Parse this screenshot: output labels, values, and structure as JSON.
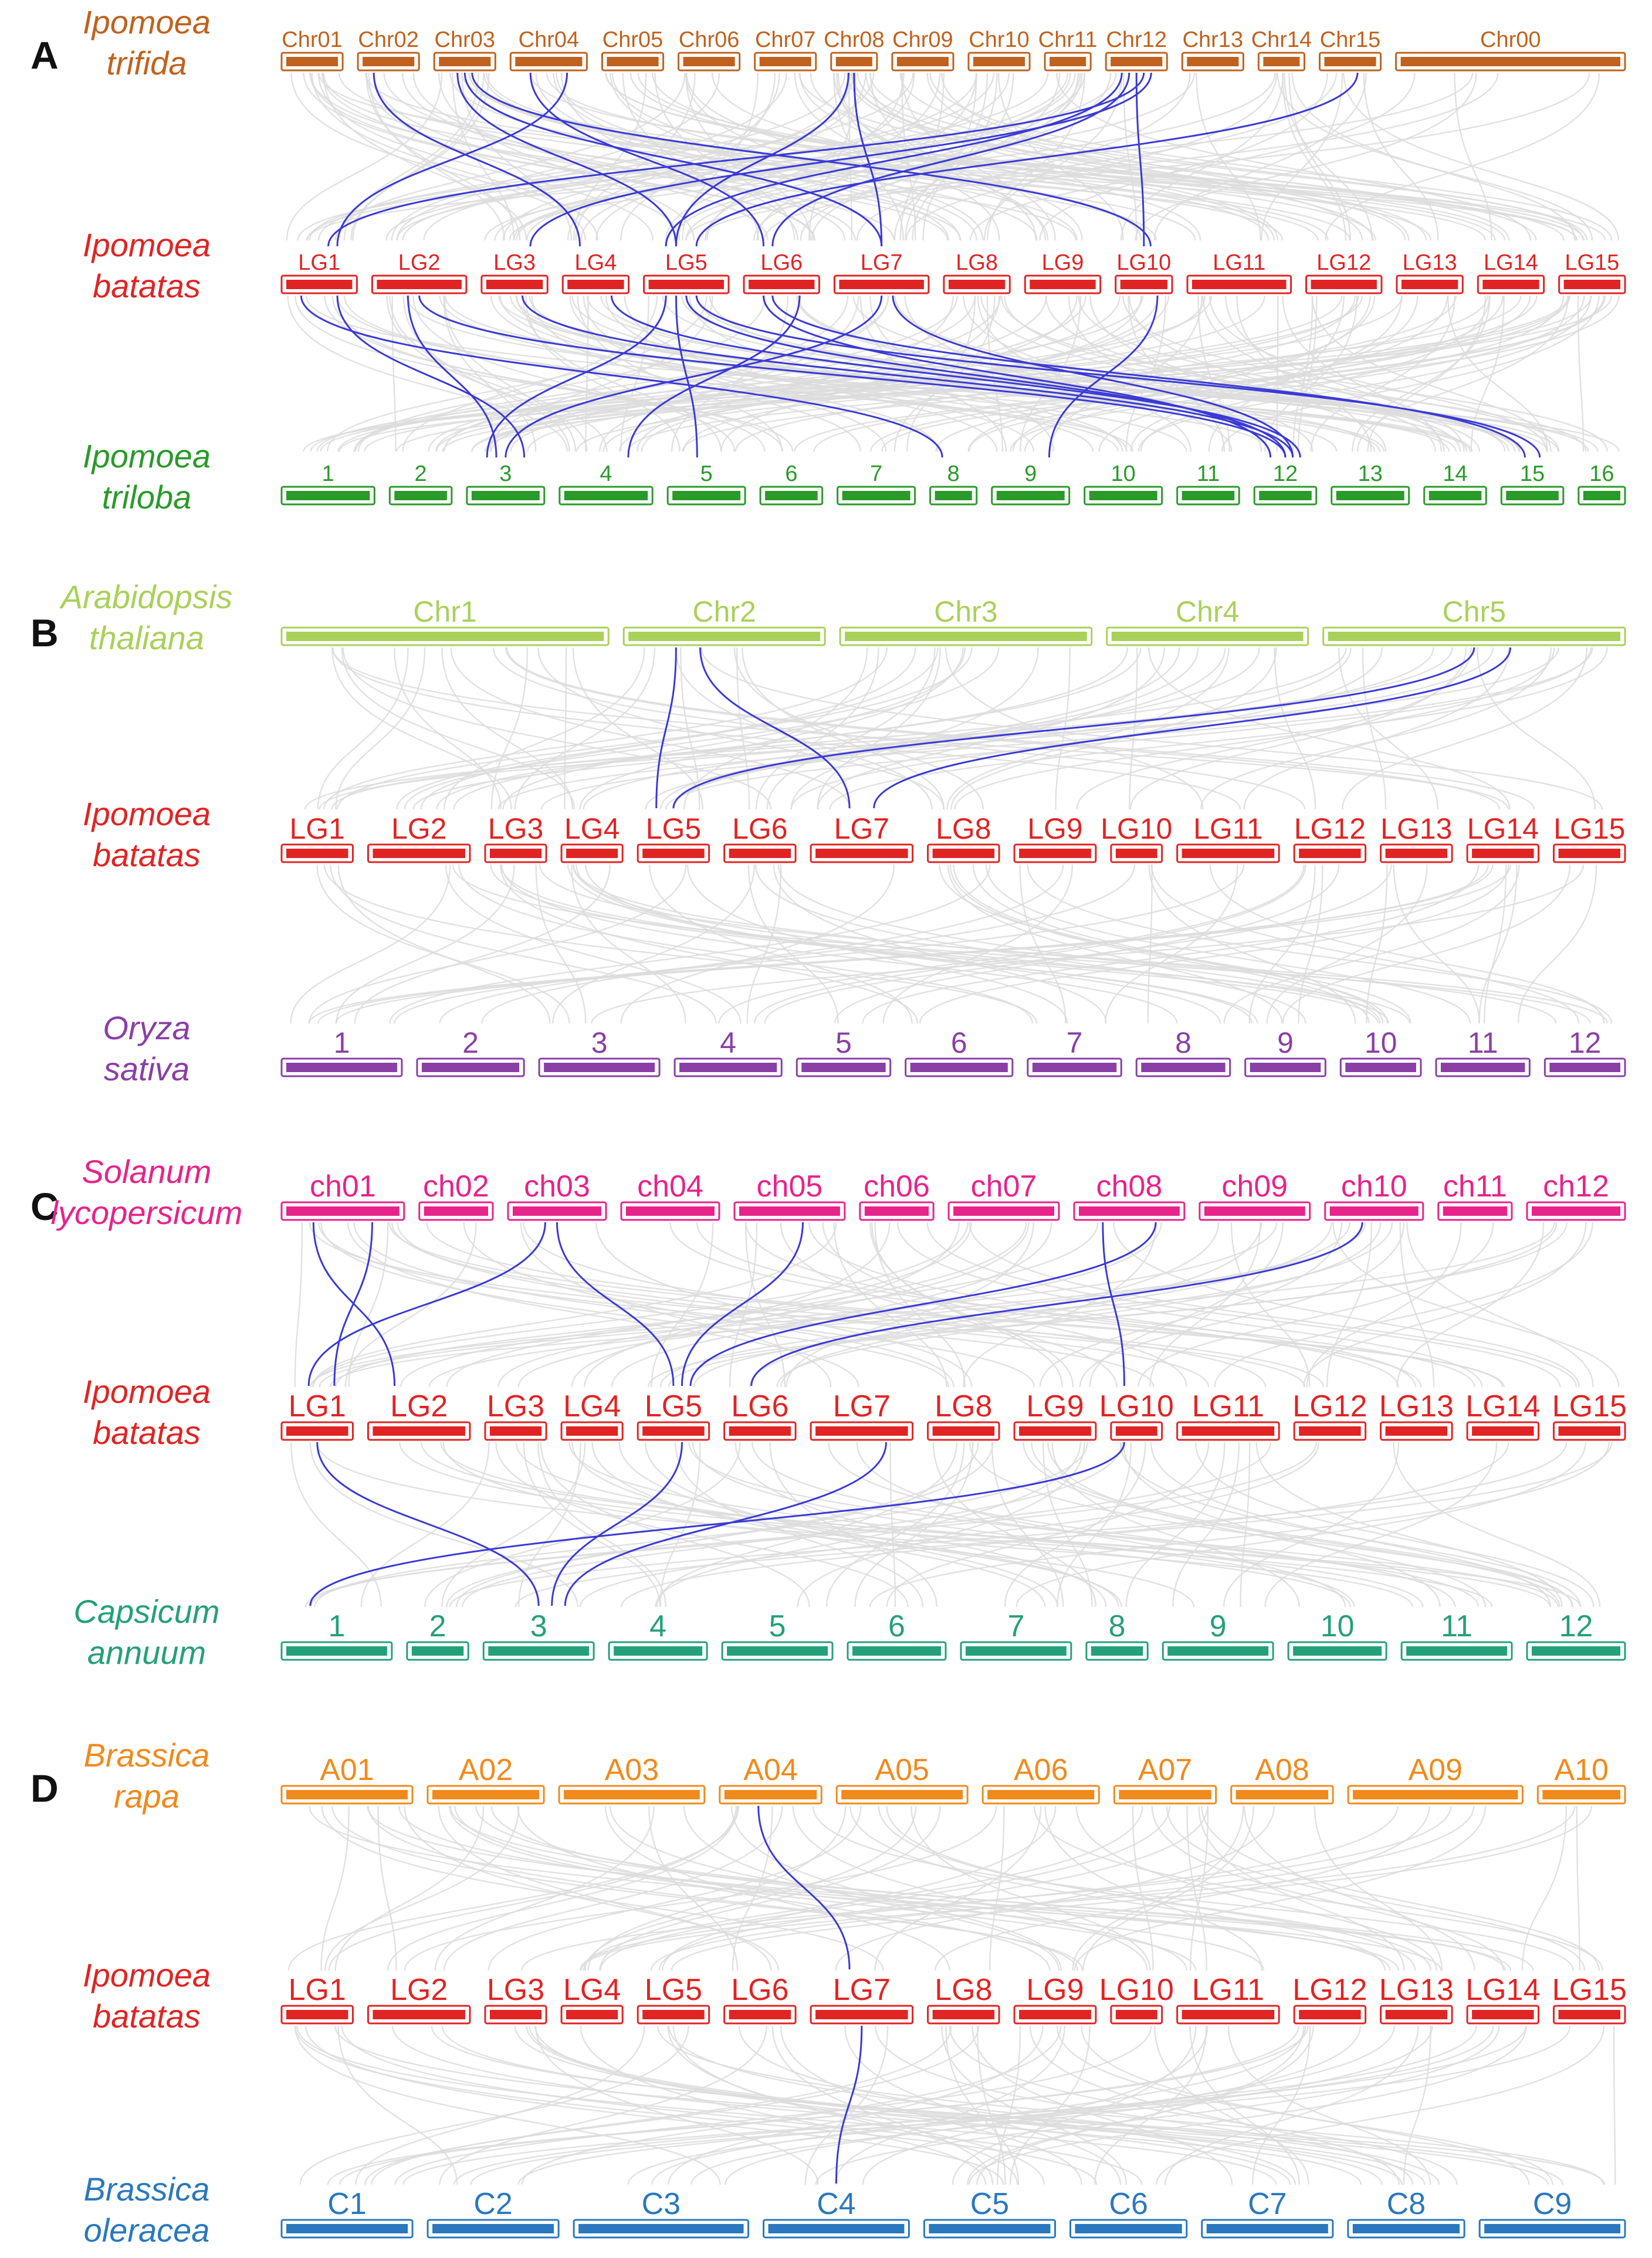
{
  "figure": {
    "panels": [
      {
        "letter": "A",
        "tracks": [
          {
            "species": [
              "Ipomoea",
              "trifida"
            ],
            "color": "#c0621e",
            "chromosomes": [
              "Chr01",
              "Chr02",
              "Chr03",
              "Chr04",
              "Chr05",
              "Chr06",
              "Chr07",
              "Chr08",
              "Chr09",
              "Chr10",
              "Chr11",
              "Chr12",
              "Chr13",
              "Chr14",
              "Chr15",
              "Chr00"
            ]
          },
          {
            "species": [
              "Ipomoea",
              "batatas"
            ],
            "color": "#e02424",
            "chromosomes": [
              "LG1",
              "LG2",
              "LG3",
              "LG4",
              "LG5",
              "LG6",
              "LG7",
              "LG8",
              "LG9",
              "LG10",
              "LG11",
              "LG12",
              "LG13",
              "LG14",
              "LG15"
            ]
          },
          {
            "species": [
              "Ipomoea",
              "triloba"
            ],
            "color": "#2a9a2a",
            "chromosomes": [
              "1",
              "2",
              "3",
              "4",
              "5",
              "6",
              "7",
              "8",
              "9",
              "10",
              "11",
              "12",
              "13",
              "14",
              "15",
              "16"
            ]
          }
        ]
      },
      {
        "letter": "B",
        "tracks": [
          {
            "species": [
              "Arabidopsis",
              "thaliana"
            ],
            "color": "#a9d15a",
            "chromosomes": [
              "Chr1",
              "Chr2",
              "Chr3",
              "Chr4",
              "Chr5"
            ]
          },
          {
            "species": [
              "Ipomoea",
              "batatas"
            ],
            "color": "#e02424",
            "chromosomes": [
              "LG1",
              "LG2",
              "LG3",
              "LG4",
              "LG5",
              "LG6",
              "LG7",
              "LG8",
              "LG9",
              "LG10",
              "LG11",
              "LG12",
              "LG13",
              "LG14",
              "LG15"
            ]
          },
          {
            "species": [
              "Oryza",
              "sativa"
            ],
            "color": "#8a3fa6",
            "chromosomes": [
              "1",
              "2",
              "3",
              "4",
              "5",
              "6",
              "7",
              "8",
              "9",
              "10",
              "11",
              "12"
            ]
          }
        ]
      },
      {
        "letter": "C",
        "tracks": [
          {
            "species": [
              "Solanum",
              "lycopersicum"
            ],
            "color": "#e8238a",
            "chromosomes": [
              "ch01",
              "ch02",
              "ch03",
              "ch04",
              "ch05",
              "ch06",
              "ch07",
              "ch08",
              "ch09",
              "ch10",
              "ch11",
              "ch12"
            ]
          },
          {
            "species": [
              "Ipomoea",
              "batatas"
            ],
            "color": "#e02424",
            "chromosomes": [
              "LG1",
              "LG2",
              "LG3",
              "LG4",
              "LG5",
              "LG6",
              "LG7",
              "LG8",
              "LG9",
              "LG10",
              "LG11",
              "LG12",
              "LG13",
              "LG14",
              "LG15"
            ]
          },
          {
            "species": [
              "Capsicum",
              "annuum"
            ],
            "color": "#24a07a",
            "chromosomes": [
              "1",
              "2",
              "3",
              "4",
              "5",
              "6",
              "7",
              "8",
              "9",
              "10",
              "11",
              "12"
            ]
          }
        ]
      },
      {
        "letter": "D",
        "tracks": [
          {
            "species": [
              "Brassica",
              "rapa"
            ],
            "color": "#f08a1c",
            "chromosomes": [
              "A01",
              "A02",
              "A03",
              "A04",
              "A05",
              "A06",
              "A07",
              "A08",
              "A09",
              "A10"
            ]
          },
          {
            "species": [
              "Ipomoea",
              "batatas"
            ],
            "color": "#e02424",
            "chromosomes": [
              "LG1",
              "LG2",
              "LG3",
              "LG4",
              "LG5",
              "LG6",
              "LG7",
              "LG8",
              "LG9",
              "LG10",
              "LG11",
              "LG12",
              "LG13",
              "LG14",
              "LG15"
            ]
          },
          {
            "species": [
              "Brassica",
              "oleracea"
            ],
            "color": "#2a78bd",
            "chromosomes": [
              "C1",
              "C2",
              "C3",
              "C4",
              "C5",
              "C6",
              "C7",
              "C8",
              "C9"
            ]
          }
        ]
      }
    ],
    "link_colors": {
      "highlight": "#3a3ad6",
      "background": "#dcdcdc"
    },
    "highlighted_links": [
      {
        "panel": "A",
        "from": "Chr02",
        "to": "LG4"
      },
      {
        "panel": "A",
        "from": "Chr03",
        "to": "LG5"
      },
      {
        "panel": "A",
        "from": "Chr03",
        "to": "LG7"
      },
      {
        "panel": "A",
        "from": "Chr03",
        "to": "LG10"
      },
      {
        "panel": "A",
        "from": "Chr04",
        "to": "LG1"
      },
      {
        "panel": "A",
        "from": "Chr04",
        "to": "LG6"
      },
      {
        "panel": "A",
        "from": "Chr08",
        "to": "LG5"
      },
      {
        "panel": "A",
        "from": "Chr08",
        "to": "LG7"
      },
      {
        "panel": "A",
        "from": "Chr12",
        "to": "LG1"
      },
      {
        "panel": "A",
        "from": "Chr12",
        "to": "LG3"
      },
      {
        "panel": "A",
        "from": "Chr12",
        "to": "LG5"
      },
      {
        "panel": "A",
        "from": "Chr12",
        "to": "LG6"
      },
      {
        "panel": "A",
        "from": "Chr12",
        "to": "LG10"
      },
      {
        "panel": "A",
        "from": "Chr15",
        "to": "LG5"
      },
      {
        "panel": "A",
        "from": "LG1",
        "to": "3"
      },
      {
        "panel": "A",
        "from": "LG1",
        "to": "8"
      },
      {
        "panel": "A",
        "from": "LG2",
        "to": "3"
      },
      {
        "panel": "A",
        "from": "LG2",
        "to": "12"
      },
      {
        "panel": "A",
        "from": "LG3",
        "to": "12"
      },
      {
        "panel": "A",
        "from": "LG4",
        "to": "12"
      },
      {
        "panel": "A",
        "from": "LG5",
        "to": "3"
      },
      {
        "panel": "A",
        "from": "LG5",
        "to": "5"
      },
      {
        "panel": "A",
        "from": "LG5",
        "to": "12"
      },
      {
        "panel": "A",
        "from": "LG5",
        "to": "15"
      },
      {
        "panel": "A",
        "from": "LG6",
        "to": "4"
      },
      {
        "panel": "A",
        "from": "LG6",
        "to": "12"
      },
      {
        "panel": "A",
        "from": "LG6",
        "to": "15"
      },
      {
        "panel": "A",
        "from": "LG7",
        "to": "3"
      },
      {
        "panel": "A",
        "from": "LG7",
        "to": "12"
      },
      {
        "panel": "A",
        "from": "LG10",
        "to": "9"
      },
      {
        "panel": "B",
        "from": "Chr2",
        "to": "LG5"
      },
      {
        "panel": "B",
        "from": "Chr2",
        "to": "LG7"
      },
      {
        "panel": "B",
        "from": "Chr5",
        "to": "LG5"
      },
      {
        "panel": "B",
        "from": "Chr5",
        "to": "LG7"
      },
      {
        "panel": "C",
        "from": "ch01",
        "to": "LG1"
      },
      {
        "panel": "C",
        "from": "ch01",
        "to": "LG2"
      },
      {
        "panel": "C",
        "from": "ch03",
        "to": "LG1"
      },
      {
        "panel": "C",
        "from": "ch03",
        "to": "LG5"
      },
      {
        "panel": "C",
        "from": "ch05",
        "to": "LG5"
      },
      {
        "panel": "C",
        "from": "ch08",
        "to": "LG5"
      },
      {
        "panel": "C",
        "from": "ch08",
        "to": "LG10"
      },
      {
        "panel": "C",
        "from": "ch10",
        "to": "LG6"
      },
      {
        "panel": "C",
        "from": "LG1",
        "to": "3"
      },
      {
        "panel": "C",
        "from": "LG5",
        "to": "3"
      },
      {
        "panel": "C",
        "from": "LG7",
        "to": "3"
      },
      {
        "panel": "C",
        "from": "LG10",
        "to": "1"
      },
      {
        "panel": "D",
        "from": "A04",
        "to": "LG7"
      },
      {
        "panel": "D",
        "from": "LG7",
        "to": "C4"
      }
    ]
  }
}
